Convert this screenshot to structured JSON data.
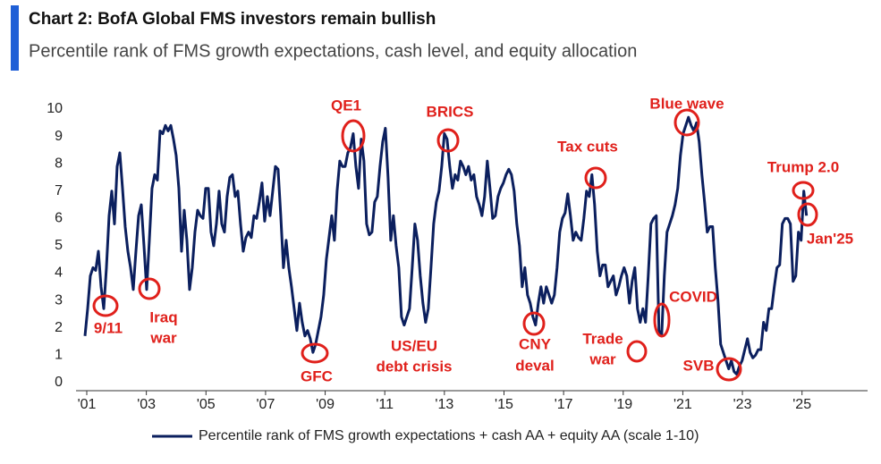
{
  "chart_data": {
    "type": "line",
    "title": "Chart 2: BofA Global FMS investors remain bullish",
    "subtitle": "Percentile rank of FMS growth expectations, cash level, and equity allocation",
    "x": [
      2000.94,
      2001.03,
      2001.12,
      2001.21,
      2001.3,
      2001.39,
      2001.48,
      2001.57,
      2001.66,
      2001.75,
      2001.84,
      2001.93,
      2002.02,
      2002.11,
      2002.2,
      2002.29,
      2002.38,
      2002.47,
      2002.56,
      2002.65,
      2002.74,
      2002.83,
      2002.92,
      2003.01,
      2003.1,
      2003.19,
      2003.28,
      2003.37,
      2003.46,
      2003.55,
      2003.64,
      2003.73,
      2003.82,
      2003.91,
      2004,
      2004.09,
      2004.18,
      2004.27,
      2004.36,
      2004.45,
      2004.54,
      2004.63,
      2004.72,
      2004.81,
      2004.9,
      2004.99,
      2005.08,
      2005.17,
      2005.26,
      2005.35,
      2005.44,
      2005.53,
      2005.62,
      2005.71,
      2005.8,
      2005.89,
      2005.98,
      2006.07,
      2006.16,
      2006.25,
      2006.34,
      2006.43,
      2006.52,
      2006.61,
      2006.7,
      2006.79,
      2006.88,
      2006.97,
      2007.06,
      2007.15,
      2007.24,
      2007.33,
      2007.42,
      2007.51,
      2007.6,
      2007.69,
      2007.78,
      2007.87,
      2007.96,
      2008.05,
      2008.14,
      2008.23,
      2008.32,
      2008.41,
      2008.5,
      2008.59,
      2008.68,
      2008.77,
      2008.86,
      2008.95,
      2009.04,
      2009.13,
      2009.22,
      2009.31,
      2009.4,
      2009.49,
      2009.58,
      2009.67,
      2009.76,
      2009.85,
      2009.94,
      2010.03,
      2010.12,
      2010.21,
      2010.3,
      2010.39,
      2010.48,
      2010.57,
      2010.66,
      2010.75,
      2010.84,
      2010.93,
      2011.02,
      2011.11,
      2011.2,
      2011.29,
      2011.38,
      2011.47,
      2011.56,
      2011.65,
      2011.74,
      2011.83,
      2011.92,
      2012.01,
      2012.1,
      2012.19,
      2012.28,
      2012.37,
      2012.46,
      2012.55,
      2012.64,
      2012.73,
      2012.82,
      2012.91,
      2013,
      2013.09,
      2013.18,
      2013.27,
      2013.36,
      2013.45,
      2013.54,
      2013.63,
      2013.72,
      2013.81,
      2013.9,
      2013.99,
      2014.08,
      2014.17,
      2014.26,
      2014.35,
      2014.44,
      2014.53,
      2014.62,
      2014.71,
      2014.8,
      2014.89,
      2014.98,
      2015.07,
      2015.16,
      2015.25,
      2015.34,
      2015.43,
      2015.52,
      2015.61,
      2015.7,
      2015.79,
      2015.88,
      2015.97,
      2016.06,
      2016.15,
      2016.24,
      2016.33,
      2016.42,
      2016.51,
      2016.6,
      2016.69,
      2016.78,
      2016.87,
      2016.96,
      2017.05,
      2017.14,
      2017.23,
      2017.32,
      2017.41,
      2017.5,
      2017.59,
      2017.68,
      2017.77,
      2017.86,
      2017.95,
      2018.04,
      2018.13,
      2018.22,
      2018.31,
      2018.4,
      2018.49,
      2018.58,
      2018.67,
      2018.76,
      2018.85,
      2018.94,
      2019.03,
      2019.12,
      2019.21,
      2019.3,
      2019.39,
      2019.48,
      2019.57,
      2019.66,
      2019.75,
      2019.84,
      2019.93,
      2020.02,
      2020.11,
      2020.2,
      2020.29,
      2020.38,
      2020.47,
      2020.56,
      2020.65,
      2020.74,
      2020.83,
      2020.92,
      2021.01,
      2021.1,
      2021.19,
      2021.28,
      2021.37,
      2021.46,
      2021.55,
      2021.64,
      2021.73,
      2021.82,
      2021.91,
      2022,
      2022.09,
      2022.18,
      2022.27,
      2022.36,
      2022.45,
      2022.54,
      2022.63,
      2022.72,
      2022.81,
      2022.9,
      2022.99,
      2023.08,
      2023.17,
      2023.26,
      2023.35,
      2023.44,
      2023.53,
      2023.62,
      2023.71,
      2023.8,
      2023.89,
      2023.98,
      2024.07,
      2024.16,
      2024.25,
      2024.34,
      2024.43,
      2024.52,
      2024.61,
      2024.7,
      2024.79,
      2024.88,
      2024.97,
      2025.06,
      2025.15
    ],
    "series": [
      {
        "name": "Percentile rank of FMS growth expectations + cash AA + equity AA (scale 1-10)",
        "color": "#0b1f5e",
        "values": [
          1.7,
          2.7,
          3.9,
          4.2,
          4.1,
          4.8,
          3.5,
          2.7,
          4.2,
          6.1,
          7.0,
          5.8,
          7.9,
          8.4,
          7.1,
          5.7,
          4.8,
          4.2,
          3.4,
          4.8,
          6.1,
          6.5,
          5.0,
          3.4,
          5.2,
          7.1,
          7.6,
          7.4,
          9.2,
          9.1,
          9.4,
          9.2,
          9.4,
          8.9,
          8.3,
          7.1,
          4.8,
          6.3,
          5.2,
          3.4,
          4.2,
          5.5,
          6.3,
          6.1,
          6.0,
          7.1,
          7.1,
          5.5,
          5.0,
          5.8,
          7.0,
          5.8,
          5.5,
          6.8,
          7.5,
          7.6,
          6.8,
          7.0,
          5.8,
          4.8,
          5.3,
          5.5,
          5.3,
          6.1,
          6.0,
          6.6,
          7.3,
          5.9,
          6.8,
          6.1,
          7.0,
          7.9,
          7.8,
          6.1,
          4.2,
          5.2,
          4.2,
          3.5,
          2.7,
          1.9,
          2.9,
          2.2,
          1.7,
          1.9,
          1.6,
          1.1,
          1.4,
          1.9,
          2.4,
          3.2,
          4.5,
          5.3,
          6.1,
          5.2,
          7.0,
          8.1,
          7.9,
          7.9,
          8.4,
          8.6,
          9.1,
          7.9,
          7.1,
          8.9,
          8.1,
          5.8,
          5.4,
          5.5,
          6.6,
          6.8,
          7.9,
          8.8,
          9.3,
          7.5,
          5.2,
          6.1,
          5.0,
          4.2,
          2.4,
          2.1,
          2.4,
          2.7,
          4.2,
          5.8,
          5.2,
          3.9,
          2.9,
          2.2,
          2.7,
          4.2,
          5.8,
          6.6,
          7.0,
          7.9,
          9.1,
          8.9,
          7.9,
          7.1,
          7.6,
          7.4,
          8.1,
          7.9,
          7.6,
          7.9,
          7.4,
          7.6,
          6.8,
          6.5,
          6.1,
          6.8,
          8.1,
          7.1,
          6.0,
          6.1,
          6.8,
          7.1,
          7.3,
          7.6,
          7.8,
          7.6,
          7.0,
          5.8,
          5.0,
          3.5,
          4.2,
          3.2,
          2.9,
          2.4,
          2.1,
          2.9,
          3.5,
          2.9,
          3.5,
          3.2,
          2.9,
          3.2,
          4.2,
          5.5,
          6.0,
          6.2,
          6.9,
          6.1,
          5.2,
          5.5,
          5.3,
          5.2,
          6.0,
          7.0,
          6.8,
          7.6,
          6.5,
          4.8,
          3.9,
          4.3,
          4.3,
          3.5,
          3.7,
          3.9,
          3.2,
          3.5,
          3.9,
          4.2,
          3.9,
          2.9,
          3.7,
          4.2,
          2.7,
          2.2,
          2.7,
          2.2,
          3.9,
          5.8,
          6.0,
          6.1,
          1.9,
          1.7,
          3.9,
          5.5,
          5.8,
          6.1,
          6.5,
          7.1,
          8.3,
          9.1,
          9.4,
          9.7,
          9.4,
          9.2,
          9.5,
          8.8,
          7.6,
          6.6,
          5.5,
          5.7,
          5.7,
          4.2,
          3.0,
          1.4,
          1.1,
          0.8,
          0.5,
          0.8,
          0.4,
          0.3,
          0.6,
          0.8,
          1.2,
          1.6,
          1.1,
          0.9,
          1.0,
          1.2,
          1.2,
          2.2,
          1.9,
          2.7,
          2.7,
          3.5,
          4.2,
          4.3,
          5.8,
          6.0,
          6.0,
          5.8,
          3.7,
          3.9,
          5.5,
          5.2,
          7.0,
          6.1
        ]
      }
    ],
    "xlim": [
      2000.64,
      2027.2
    ],
    "xticks": [
      {
        "value": 2001,
        "label": "'01"
      },
      {
        "value": 2003,
        "label": "'03"
      },
      {
        "value": 2005,
        "label": "'05"
      },
      {
        "value": 2007,
        "label": "'07"
      },
      {
        "value": 2009,
        "label": "'09"
      },
      {
        "value": 2011,
        "label": "'11"
      },
      {
        "value": 2013,
        "label": "'13"
      },
      {
        "value": 2015,
        "label": "'15"
      },
      {
        "value": 2017,
        "label": "'17"
      },
      {
        "value": 2019,
        "label": "'19"
      },
      {
        "value": 2021,
        "label": "'21"
      },
      {
        "value": 2023,
        "label": "'23"
      },
      {
        "value": 2025,
        "label": "'25"
      }
    ],
    "ylim": [
      -0.3,
      10
    ],
    "yticks": [
      0,
      1,
      2,
      3,
      4,
      5,
      6,
      7,
      8,
      9,
      10
    ],
    "grid": false,
    "legend": "bottom",
    "annotations": [
      {
        "text": [
          "9/11"
        ]
      },
      {
        "text": [
          "Iraq",
          "war"
        ]
      },
      {
        "text": [
          "GFC"
        ]
      },
      {
        "text": [
          "QE1"
        ]
      },
      {
        "text": [
          "US/EU",
          "debt crisis"
        ]
      },
      {
        "text": [
          "BRICS"
        ]
      },
      {
        "text": [
          "CNY",
          "deval"
        ]
      },
      {
        "text": [
          "Tax cuts"
        ]
      },
      {
        "text": [
          "Trade",
          "war"
        ]
      },
      {
        "text": [
          "Blue wave"
        ]
      },
      {
        "text": [
          "COVID"
        ]
      },
      {
        "text": [
          "SVB"
        ]
      },
      {
        "text": [
          "Trump 2.0"
        ]
      },
      {
        "text": [
          "Jan'25"
        ]
      }
    ]
  }
}
